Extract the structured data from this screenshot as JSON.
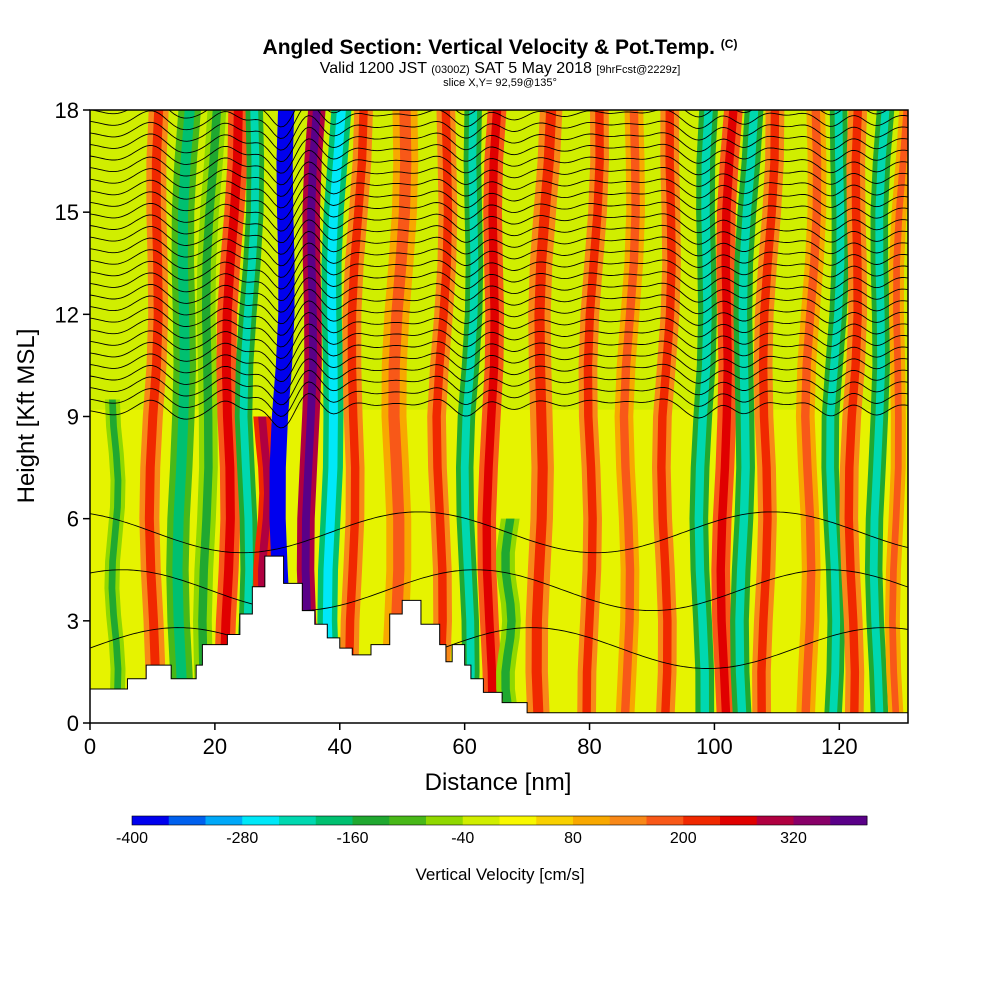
{
  "header": {
    "title": "Angled Section: Vertical Velocity & Pot.Temp.",
    "title_mark": "(C)",
    "valid": "Valid 1200 JST",
    "zulu": "(0300Z)",
    "date": "SAT 5 May 2018",
    "forecast": "[9hrFcst@2229z]",
    "slice": "slice X,Y= 92,59@135°"
  },
  "chart_data": {
    "type": "heatmap",
    "title": "Angled Section: Vertical Velocity & Pot.Temp.",
    "xlabel": "Distance [nm]",
    "ylabel": "Height [Kft MSL]",
    "xlim": [
      0,
      131
    ],
    "ylim": [
      0,
      18
    ],
    "x_ticks": [
      0,
      20,
      40,
      60,
      80,
      100,
      120
    ],
    "y_ticks": [
      0,
      3,
      6,
      9,
      12,
      15,
      18
    ],
    "grid": false,
    "color_scale": {
      "label": "Vertical Velocity [cm/s]",
      "min": -400,
      "max": 400,
      "step": 40,
      "tick_labels": [
        -400,
        -280,
        -160,
        -40,
        80,
        200,
        320
      ],
      "colors": [
        "#0000ee",
        "#0060ee",
        "#00a8f8",
        "#00e8f8",
        "#00d8b0",
        "#00c070",
        "#20a830",
        "#48b818",
        "#90d800",
        "#d0ee00",
        "#f8f800",
        "#f8d000",
        "#f8a800",
        "#f88818",
        "#f85818",
        "#f02800",
        "#e00000",
        "#b00040",
        "#880068",
        "#5a0088"
      ]
    },
    "terrain": {
      "x": [
        0,
        6,
        6,
        9,
        9,
        13,
        13,
        17,
        17,
        18,
        18,
        20,
        20,
        22,
        22,
        24,
        24,
        26,
        26,
        28,
        28,
        31,
        31,
        34,
        34,
        36,
        36,
        38,
        38,
        40,
        40,
        42,
        42,
        45,
        45,
        48,
        48,
        50,
        50,
        53,
        53,
        56,
        56,
        57,
        57,
        58,
        58,
        60,
        60,
        61,
        61,
        63,
        63,
        66,
        66,
        70,
        70,
        131
      ],
      "y": [
        1,
        1,
        1.3,
        1.3,
        1.7,
        1.7,
        1.3,
        1.3,
        1.7,
        1.7,
        2.3,
        2.3,
        2.3,
        2.3,
        2.6,
        2.6,
        3.2,
        3.2,
        4,
        4,
        4.9,
        4.9,
        4.1,
        4.1,
        3.3,
        3.3,
        2.9,
        2.9,
        2.5,
        2.5,
        2.2,
        2.2,
        2,
        2,
        2.3,
        2.3,
        3.2,
        3.2,
        3.6,
        3.6,
        2.9,
        2.9,
        2.3,
        2.3,
        1.8,
        1.8,
        2.3,
        2.3,
        1.7,
        1.7,
        1.3,
        1.3,
        0.9,
        0.9,
        0.6,
        0.6,
        0.3,
        0.3
      ]
    },
    "vertical_velocity_bands": [
      {
        "x": 4,
        "w": 1.2,
        "v": -70,
        "ytop": 9.5
      },
      {
        "x": 10,
        "w": 1.6,
        "v": 140,
        "ytop": 18
      },
      {
        "x": 14.5,
        "w": 1.8,
        "v": -120,
        "ytop": 18
      },
      {
        "x": 18.5,
        "w": 1.5,
        "v": -60,
        "ytop": 18
      },
      {
        "x": 22,
        "w": 1.6,
        "v": 180,
        "ytop": 18
      },
      {
        "x": 25,
        "w": 1.4,
        "v": -140,
        "ytop": 18
      },
      {
        "x": 28,
        "w": 1.4,
        "v": 220,
        "ytop": 9
      },
      {
        "x": 30.5,
        "w": 1.3,
        "v": -390,
        "ytop": 18
      },
      {
        "x": 35,
        "w": 1.4,
        "v": 310,
        "ytop": 18
      },
      {
        "x": 38.5,
        "w": 1.6,
        "v": -170,
        "ytop": 18
      },
      {
        "x": 42,
        "w": 1.5,
        "v": 120,
        "ytop": 18
      },
      {
        "x": 49,
        "w": 2,
        "v": 80,
        "ytop": 18
      },
      {
        "x": 56,
        "w": 1.5,
        "v": 150,
        "ytop": 18
      },
      {
        "x": 60.5,
        "w": 1.4,
        "v": -150,
        "ytop": 18
      },
      {
        "x": 64,
        "w": 1.5,
        "v": 170,
        "ytop": 18
      },
      {
        "x": 67,
        "w": 1.5,
        "v": -60,
        "ytop": 6
      },
      {
        "x": 72,
        "w": 1.8,
        "v": 120,
        "ytop": 18
      },
      {
        "x": 80,
        "w": 1.5,
        "v": 120,
        "ytop": 18
      },
      {
        "x": 86,
        "w": 1.5,
        "v": 100,
        "ytop": 18
      },
      {
        "x": 92,
        "w": 1.5,
        "v": 140,
        "ytop": 18
      },
      {
        "x": 98,
        "w": 1.5,
        "v": -150,
        "ytop": 18
      },
      {
        "x": 101.5,
        "w": 1.5,
        "v": 160,
        "ytop": 18
      },
      {
        "x": 104.5,
        "w": 1.5,
        "v": -150,
        "ytop": 18
      },
      {
        "x": 108,
        "w": 1.5,
        "v": 120,
        "ytop": 18
      },
      {
        "x": 115,
        "w": 1.5,
        "v": 110,
        "ytop": 18
      },
      {
        "x": 119,
        "w": 1.4,
        "v": -160,
        "ytop": 18
      },
      {
        "x": 122,
        "w": 1.5,
        "v": 150,
        "ytop": 18
      },
      {
        "x": 126,
        "w": 1.4,
        "v": -140,
        "ytop": 18
      },
      {
        "x": 129,
        "w": 1.2,
        "v": 100,
        "ytop": 18
      }
    ]
  }
}
